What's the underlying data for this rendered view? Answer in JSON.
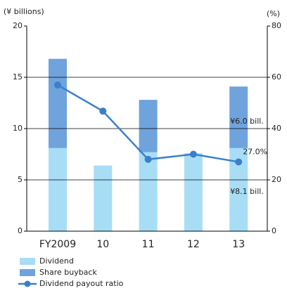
{
  "chart_data": {
    "type": "bar",
    "y_label": "(¥ billions)",
    "y2_label": "(%)",
    "categories": [
      "FY2009",
      "10",
      "11",
      "12",
      "13"
    ],
    "series": [
      {
        "name": "Dividend",
        "color": "#a8ddf6",
        "values": [
          8.1,
          6.4,
          7.7,
          7.6,
          8.1
        ],
        "value_labels": [
          null,
          null,
          null,
          null,
          "¥8.1 bill."
        ]
      },
      {
        "name": "Share buyback",
        "color": "#6fa3dc",
        "values": [
          8.7,
          0,
          5.1,
          0,
          6.0
        ],
        "value_labels": [
          null,
          null,
          null,
          null,
          "¥6.0 bill."
        ]
      },
      {
        "name": "Dividend payout ratio",
        "type": "line",
        "axis": "y2",
        "color": "#3b7fcc",
        "values": [
          57,
          46.8,
          28,
          30,
          27.0
        ],
        "value_labels": [
          null,
          null,
          null,
          null,
          "27.0%"
        ]
      }
    ],
    "ylim": [
      0,
      20
    ],
    "yticks": [
      0,
      5,
      10,
      15,
      20
    ],
    "y2lim": [
      0,
      80
    ],
    "y2ticks": [
      0,
      20,
      40,
      60,
      80
    ],
    "grid": true,
    "legend": "bottom-left"
  }
}
